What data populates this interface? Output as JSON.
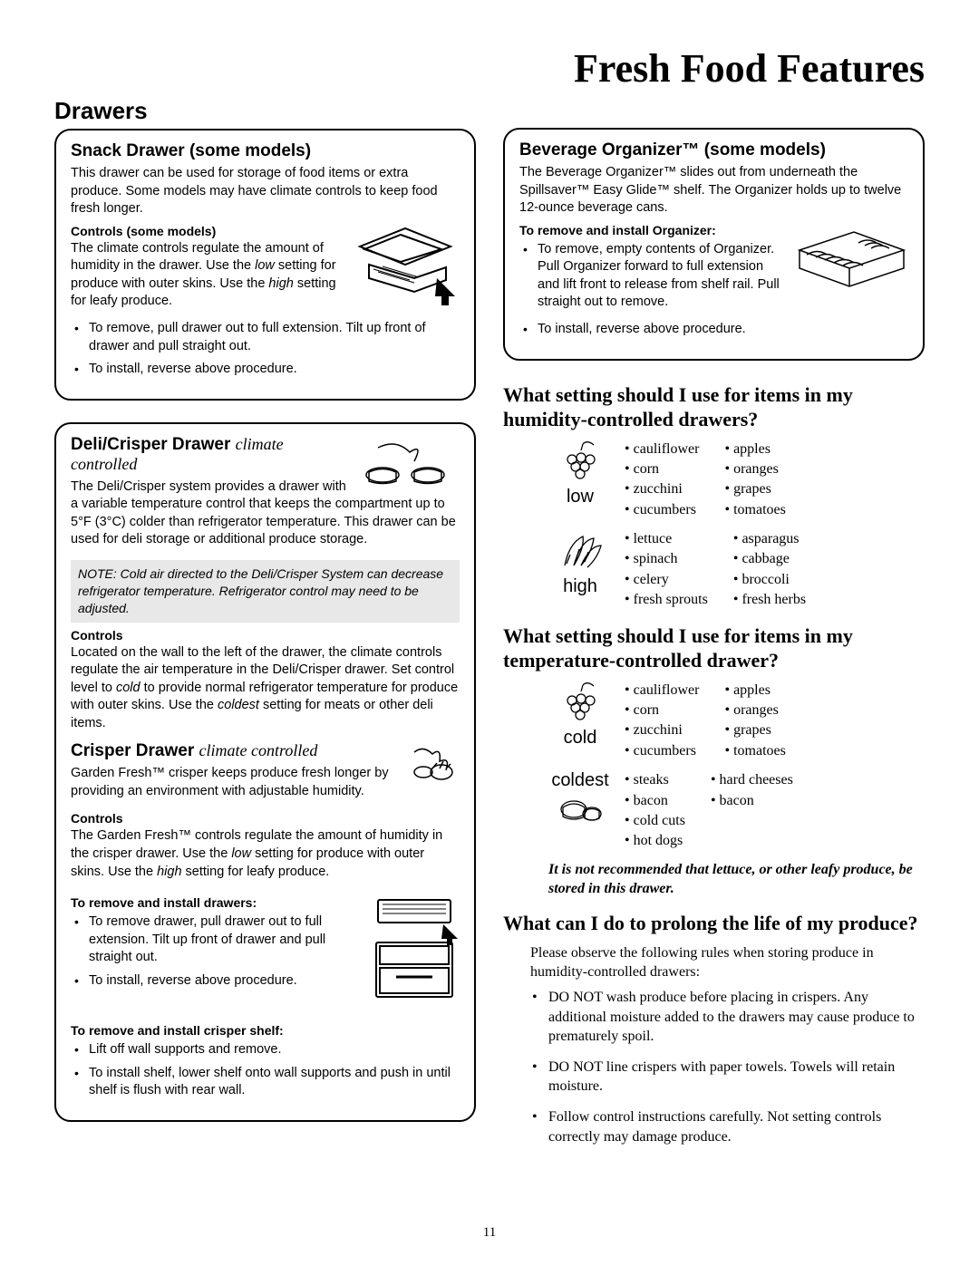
{
  "page_title": "Fresh Food Features",
  "section_heading": "Drawers",
  "page_number": "11",
  "snack": {
    "title": "Snack Drawer",
    "title_suffix": "(some models)",
    "intro": "This drawer can be used for storage of food items or extra produce. Some models may have climate controls to keep food fresh longer.",
    "controls_heading": "Controls (some models)",
    "controls_text_a": "The climate controls regulate the amount of humidity in the drawer. Use the ",
    "controls_low": "low",
    "controls_text_b": " setting for produce with outer skins. Use the ",
    "controls_high": "high",
    "controls_text_c": " setting for leafy produce.",
    "bullets": [
      "To remove, pull drawer out to full extension. Tilt up front of drawer and pull straight out.",
      "To install, reverse above procedure."
    ]
  },
  "deli": {
    "title": "Deli/Crisper Drawer",
    "title_suffix": "climate controlled",
    "intro": "The Deli/Crisper system provides a drawer with a variable temperature control that keeps the compartment up to 5°F (3°C) colder than refrigerator temperature. This drawer can be used for deli storage or additional produce storage.",
    "note": "NOTE:  Cold air directed to the Deli/Crisper System can decrease refrigerator temperature. Refrigerator control may need to be adjusted.",
    "controls_heading": "Controls",
    "controls_text_a": "Located on the wall to the left of the drawer, the climate controls regulate the air temperature in the Deli/Crisper drawer. Set control level to ",
    "cold": "cold",
    "controls_text_b": " to provide normal refrigerator temperature for produce with outer skins. Use the ",
    "coldest": "coldest",
    "controls_text_c": " setting for meats or other deli items."
  },
  "crisper": {
    "title": "Crisper Drawer",
    "title_suffix": "climate controlled",
    "intro": "Garden Fresh™ crisper keeps produce fresh longer by providing an environment with adjustable humidity.",
    "controls_heading": "Controls",
    "controls_text_a": "The Garden Fresh™ controls regulate the amount of humidity in the crisper drawer. Use the ",
    "low": "low",
    "controls_text_b": " setting for produce with outer skins. Use the ",
    "high": "high",
    "controls_text_c": " setting for leafy produce.",
    "remove_heading": "To remove and install drawers:",
    "remove_bullets": [
      "To remove drawer, pull drawer out to full extension. Tilt up front of drawer and pull straight out.",
      "To install, reverse above procedure."
    ],
    "shelf_heading": "To remove and install crisper shelf:",
    "shelf_bullets": [
      "Lift off wall supports and remove.",
      "To install shelf, lower shelf onto wall supports and push in until shelf is flush with rear wall."
    ]
  },
  "organizer": {
    "title": "Beverage Organizer™ (some models)",
    "intro": "The Beverage Organizer™ slides out from underneath the Spillsaver™ Easy Glide™ shelf. The Organizer holds up to twelve 12-ounce beverage cans.",
    "remove_heading": "To remove and install Organizer:",
    "bullets": [
      "To remove, empty contents of Organizer. Pull Organizer forward to full extension and lift front to release from shelf rail. Pull straight out to remove.",
      "To install, reverse above procedure."
    ]
  },
  "humidity_q": "What setting should I use for items in my humidity-controlled drawers?",
  "humidity_low": {
    "label": "low",
    "col1": [
      "cauliflower",
      "corn",
      "zucchini",
      "cucumbers"
    ],
    "col2": [
      "apples",
      "oranges",
      "grapes",
      "tomatoes"
    ]
  },
  "humidity_high": {
    "label": "high",
    "col1": [
      "lettuce",
      "spinach",
      "celery",
      "fresh sprouts"
    ],
    "col2": [
      "asparagus",
      "cabbage",
      "broccoli",
      "fresh herbs"
    ]
  },
  "temp_q": "What setting should I use for items in my temperature-controlled drawer?",
  "temp_cold": {
    "label": "cold",
    "col1": [
      "cauliflower",
      "corn",
      "zucchini",
      "cucumbers"
    ],
    "col2": [
      "apples",
      "oranges",
      "grapes",
      "tomatoes"
    ]
  },
  "temp_coldest": {
    "label": "coldest",
    "col1": [
      "steaks",
      "bacon",
      "cold cuts",
      "hot dogs"
    ],
    "col2": [
      "hard cheeses",
      "bacon"
    ]
  },
  "advice_text": "It is not recommended that lettuce, or other leafy produce, be stored in this drawer.",
  "prolong_q": "What can I do to prolong the life of my produce?",
  "prolong_intro": "Please observe the following rules when storing produce in humidity-controlled drawers:",
  "prolong_bullets": [
    "DO NOT wash produce before placing in crispers. Any additional moisture added to the drawers may cause produce to prematurely spoil.",
    "DO NOT line crispers with paper towels. Towels will retain moisture.",
    "Follow control instructions carefully. Not setting controls correctly may damage produce."
  ]
}
